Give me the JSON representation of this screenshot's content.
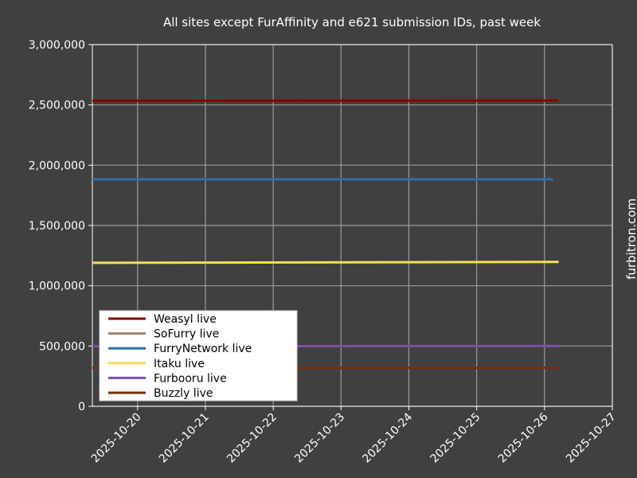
{
  "chart_data": {
    "type": "line",
    "title": "All sites except FurAffinity and e621 submission IDs, past week",
    "xlabel": "",
    "ylabel": "",
    "watermark": "furbitron.com",
    "x_axis_type": "date",
    "xlim": [
      "2025-10-19T08:00",
      "2025-10-27T00:00"
    ],
    "ylim": [
      0,
      3000000
    ],
    "x_ticks": [
      "2025-10-20",
      "2025-10-21",
      "2025-10-22",
      "2025-10-23",
      "2025-10-24",
      "2025-10-25",
      "2025-10-26",
      "2025-10-27"
    ],
    "y_ticks": [
      0,
      500000,
      1000000,
      1500000,
      2000000,
      2500000,
      3000000
    ],
    "y_tick_labels": [
      "0",
      "500,000",
      "1,000,000",
      "1,500,000",
      "2,000,000",
      "2,500,000",
      "3,000,000"
    ],
    "grid": true,
    "legend_placement": "lower-left",
    "series": [
      {
        "name": "Weasyl live",
        "color": "#8b0000",
        "x": [
          "2025-10-19T08:00",
          "2025-10-26T05:00"
        ],
        "y": [
          2535000,
          2537000
        ]
      },
      {
        "name": "SoFurry live",
        "color": "#a0826d",
        "x": [],
        "y": []
      },
      {
        "name": "FurryNetwork live",
        "color": "#2e6fa8",
        "x": [
          "2025-10-19T08:00",
          "2025-10-26T03:00"
        ],
        "y": [
          1883000,
          1883000
        ]
      },
      {
        "name": "Itaku live",
        "color": "#f5e050",
        "x": [
          "2025-10-19T08:00",
          "2025-10-26T05:00"
        ],
        "y": [
          1190000,
          1198000
        ]
      },
      {
        "name": "Furbooru live",
        "color": "#7b4fa8",
        "x": [
          "2025-10-19T08:00",
          "2025-10-26T05:00"
        ],
        "y": [
          498000,
          500000
        ]
      },
      {
        "name": "Buzzly live",
        "color": "#7a2e0e",
        "x": [
          "2025-10-19T08:00",
          "2025-10-26T05:00"
        ],
        "y": [
          320000,
          320000
        ]
      }
    ]
  }
}
